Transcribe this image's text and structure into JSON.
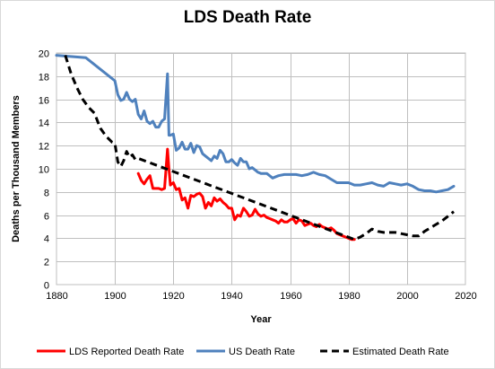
{
  "chart_data": {
    "type": "line",
    "title": "LDS Death Rate",
    "xlabel": "Year",
    "ylabel": "Deaths per Thousand Members",
    "xlim": [
      1880,
      2020
    ],
    "ylim": [
      0,
      20
    ],
    "x_ticks": [
      "1880",
      "1900",
      "1920",
      "1940",
      "1960",
      "1980",
      "2000",
      "2020"
    ],
    "y_ticks": [
      "0",
      "2",
      "4",
      "6",
      "8",
      "10",
      "12",
      "14",
      "16",
      "18",
      "20"
    ],
    "grid": true,
    "legend_position": "bottom",
    "series": [
      {
        "name": "LDS Reported Death Rate",
        "color": "#ff0000",
        "style": "solid",
        "x": [
          1908,
          1909,
          1910,
          1911,
          1912,
          1913,
          1914,
          1915,
          1916,
          1917,
          1918,
          1918.5,
          1919,
          1920,
          1921,
          1922,
          1923,
          1924,
          1925,
          1926,
          1927,
          1928,
          1929,
          1930,
          1931,
          1932,
          1933,
          1934,
          1935,
          1936,
          1937,
          1938,
          1939,
          1940,
          1941,
          1942,
          1943,
          1944,
          1945,
          1946,
          1947,
          1948,
          1949,
          1950,
          1951,
          1952,
          1953,
          1954,
          1955,
          1956,
          1957,
          1958,
          1959,
          1960,
          1961,
          1962,
          1963,
          1964,
          1965,
          1966,
          1967,
          1968,
          1969,
          1970,
          1971,
          1972,
          1973,
          1974,
          1975,
          1976,
          1977,
          1978,
          1979,
          1980,
          1981,
          1982
        ],
        "values": [
          9.6,
          9.0,
          8.7,
          9.1,
          9.4,
          8.3,
          8.3,
          8.3,
          8.2,
          8.3,
          11.7,
          10.0,
          8.6,
          8.8,
          8.2,
          8.3,
          7.3,
          7.5,
          6.6,
          7.7,
          7.6,
          7.8,
          7.9,
          7.6,
          6.6,
          7.1,
          6.8,
          7.5,
          7.2,
          7.4,
          7.1,
          6.9,
          6.6,
          6.6,
          5.6,
          6.0,
          5.9,
          6.6,
          6.3,
          5.9,
          6.0,
          6.5,
          6.1,
          5.9,
          6.0,
          5.8,
          5.7,
          5.6,
          5.5,
          5.3,
          5.6,
          5.4,
          5.4,
          5.6,
          5.7,
          5.3,
          5.6,
          5.5,
          5.1,
          5.2,
          5.3,
          5.1,
          5.0,
          5.2,
          5.0,
          4.9,
          4.8,
          4.9,
          4.7,
          4.4,
          4.3,
          4.2,
          4.1,
          4.0,
          3.9,
          3.9
        ]
      },
      {
        "name": "US Death Rate",
        "color": "#4f81bd",
        "style": "solid",
        "x": [
          1880,
          1890,
          1900,
          1901,
          1902,
          1903,
          1904,
          1905,
          1906,
          1907,
          1908,
          1909,
          1910,
          1911,
          1912,
          1913,
          1914,
          1915,
          1916,
          1917,
          1918,
          1918.5,
          1919,
          1920,
          1921,
          1922,
          1923,
          1924,
          1925,
          1926,
          1927,
          1928,
          1929,
          1930,
          1931,
          1932,
          1933,
          1934,
          1935,
          1936,
          1937,
          1938,
          1939,
          1940,
          1941,
          1942,
          1943,
          1944,
          1945,
          1946,
          1947,
          1948,
          1949,
          1950,
          1952,
          1954,
          1956,
          1958,
          1960,
          1962,
          1964,
          1966,
          1968,
          1970,
          1972,
          1974,
          1976,
          1978,
          1980,
          1982,
          1984,
          1986,
          1988,
          1990,
          1992,
          1994,
          1996,
          1998,
          2000,
          2002,
          2004,
          2006,
          2008,
          2010,
          2012,
          2014,
          2016
        ],
        "values": [
          19.8,
          19.6,
          17.6,
          16.4,
          15.9,
          16.0,
          16.6,
          16.0,
          15.8,
          16.0,
          14.7,
          14.3,
          15.0,
          14.1,
          13.9,
          14.1,
          13.6,
          13.6,
          14.1,
          14.3,
          18.2,
          12.9,
          12.9,
          13.0,
          11.6,
          11.8,
          12.3,
          11.7,
          11.7,
          12.2,
          11.4,
          12.0,
          11.9,
          11.3,
          11.1,
          10.9,
          10.7,
          11.1,
          10.9,
          11.6,
          11.3,
          10.6,
          10.6,
          10.8,
          10.5,
          10.3,
          10.9,
          10.6,
          10.6,
          10.0,
          10.1,
          9.9,
          9.7,
          9.6,
          9.6,
          9.2,
          9.4,
          9.5,
          9.5,
          9.5,
          9.4,
          9.5,
          9.7,
          9.5,
          9.4,
          9.1,
          8.8,
          8.8,
          8.8,
          8.6,
          8.6,
          8.7,
          8.8,
          8.6,
          8.5,
          8.8,
          8.7,
          8.6,
          8.7,
          8.5,
          8.2,
          8.1,
          8.1,
          8.0,
          8.1,
          8.2,
          8.5
        ]
      },
      {
        "name": "Estimated Death Rate",
        "color": "#000000",
        "style": "dashed",
        "x": [
          1883,
          1885,
          1887,
          1889,
          1891,
          1893,
          1895,
          1897,
          1899,
          1900,
          1901,
          1902,
          1903,
          1904,
          1905,
          1906,
          1907,
          1908,
          1982,
          1984,
          1986,
          1988,
          1990,
          1992,
          1994,
          1996,
          1998,
          2000,
          2002,
          2004,
          2006,
          2008,
          2010,
          2012,
          2014,
          2016
        ],
        "values": [
          19.8,
          18.2,
          17.0,
          16.0,
          15.3,
          14.8,
          13.5,
          12.8,
          12.3,
          12.2,
          10.6,
          10.2,
          10.7,
          11.5,
          11.0,
          11.2,
          10.8,
          10.9,
          3.9,
          4.1,
          4.4,
          4.8,
          4.6,
          4.5,
          4.5,
          4.5,
          4.4,
          4.3,
          4.2,
          4.2,
          4.6,
          4.9,
          5.2,
          5.5,
          5.9,
          6.3
        ]
      }
    ]
  }
}
